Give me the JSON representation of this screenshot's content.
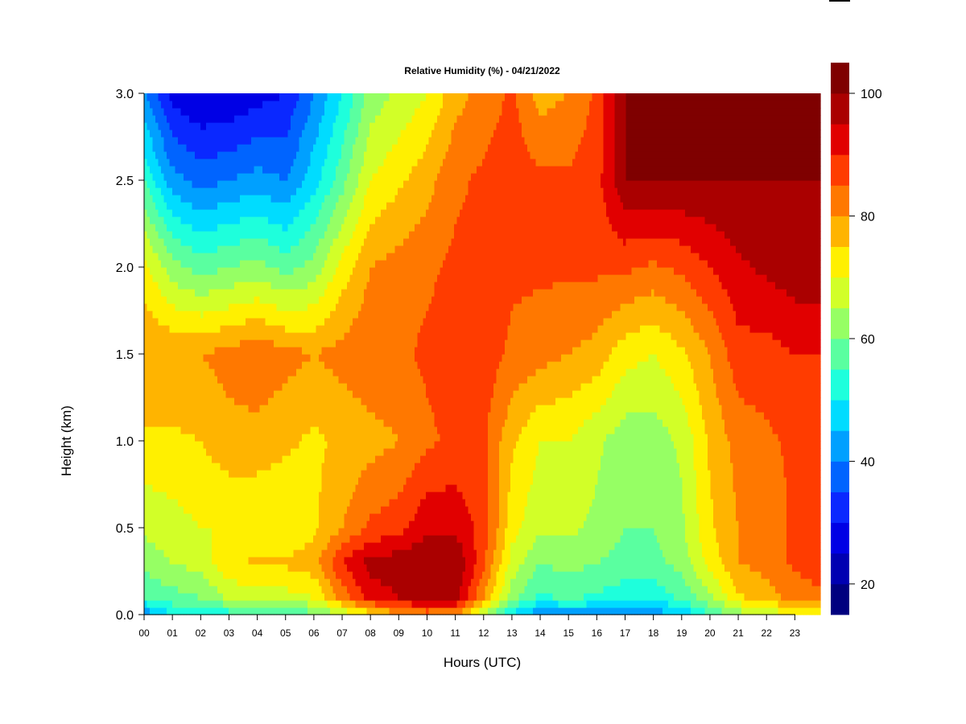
{
  "chart_data": {
    "type": "heatmap",
    "title": "Relative Humidity (%) - 04/21/2022",
    "xlabel": "Hours (UTC)",
    "ylabel": "Height (km)",
    "xlim": [
      0,
      23.9
    ],
    "ylim": [
      0.0,
      3.0
    ],
    "x_ticks": [
      "00",
      "01",
      "02",
      "03",
      "04",
      "05",
      "06",
      "07",
      "08",
      "09",
      "10",
      "11",
      "12",
      "13",
      "14",
      "15",
      "16",
      "17",
      "18",
      "19",
      "20",
      "21",
      "22",
      "23"
    ],
    "y_ticks": [
      "0.0",
      "0.5",
      "1.0",
      "1.5",
      "2.0",
      "2.5",
      "3.0"
    ],
    "colorbar": {
      "min": 15,
      "max": 100,
      "step": 5,
      "tick_values": [
        20,
        40,
        60,
        80,
        100
      ],
      "tick_labels": [
        "20",
        "40",
        "60",
        "80",
        "100"
      ],
      "colors": [
        "#00007F",
        "#0000B2",
        "#0000E5",
        "#0A28FF",
        "#0064FF",
        "#00A0FF",
        "#00DCFF",
        "#1EFFDC",
        "#5AFFA0",
        "#96FF64",
        "#D2FF28",
        "#FFF000",
        "#FFB400",
        "#FF7800",
        "#FF3C00",
        "#E10000",
        "#AA0000",
        "#7F0000"
      ]
    },
    "grid": false,
    "rh_profiles": [
      {
        "hour": 0.0,
        "heights_km": [
          0.0,
          0.1,
          0.3,
          0.5,
          1.0,
          1.5,
          2.0,
          2.5,
          3.0
        ],
        "rh": [
          40,
          55,
          62,
          66,
          74,
          80,
          72,
          55,
          40
        ]
      },
      {
        "hour": 1.0,
        "heights_km": [
          0.0,
          0.1,
          0.3,
          0.5,
          1.0,
          1.5,
          2.0,
          2.5,
          3.0
        ],
        "rh": [
          50,
          58,
          65,
          68,
          74,
          80,
          62,
          42,
          28
        ]
      },
      {
        "hour": 2.0,
        "heights_km": [
          0.0,
          0.1,
          0.3,
          0.5,
          1.0,
          1.5,
          2.0,
          2.5,
          3.0
        ],
        "rh": [
          50,
          60,
          67,
          70,
          75,
          80,
          58,
          38,
          25
        ]
      },
      {
        "hour": 3.0,
        "heights_km": [
          0.0,
          0.1,
          0.3,
          0.5,
          1.0,
          1.5,
          2.0,
          2.5,
          3.0
        ],
        "rh": [
          52,
          66,
          74,
          70,
          78,
          82,
          60,
          40,
          25
        ]
      },
      {
        "hour": 4.0,
        "heights_km": [
          0.0,
          0.1,
          0.3,
          0.5,
          1.0,
          1.5,
          2.0,
          2.5,
          3.0
        ],
        "rh": [
          55,
          68,
          76,
          70,
          78,
          84,
          62,
          42,
          28
        ]
      },
      {
        "hour": 5.0,
        "heights_km": [
          0.0,
          0.1,
          0.3,
          0.5,
          1.0,
          1.5,
          2.0,
          2.5,
          3.0
        ],
        "rh": [
          55,
          68,
          76,
          70,
          76,
          82,
          58,
          40,
          30
        ]
      },
      {
        "hour": 6.0,
        "heights_km": [
          0.0,
          0.1,
          0.3,
          0.5,
          1.0,
          1.5,
          2.0,
          2.5,
          3.0
        ],
        "rh": [
          58,
          70,
          78,
          74,
          74,
          80,
          62,
          48,
          40
        ]
      },
      {
        "hour": 7.0,
        "heights_km": [
          0.0,
          0.1,
          0.3,
          0.5,
          1.0,
          1.5,
          2.0,
          2.5,
          3.0
        ],
        "rh": [
          65,
          82,
          90,
          80,
          76,
          82,
          72,
          58,
          50
        ]
      },
      {
        "hour": 8.0,
        "heights_km": [
          0.0,
          0.1,
          0.3,
          0.5,
          1.0,
          1.5,
          2.0,
          2.5,
          3.0
        ],
        "rh": [
          72,
          92,
          97,
          86,
          78,
          84,
          80,
          70,
          62
        ]
      },
      {
        "hour": 9.0,
        "heights_km": [
          0.0,
          0.1,
          0.3,
          0.5,
          1.0,
          1.5,
          2.0,
          2.5,
          3.0
        ],
        "rh": [
          78,
          95,
          98,
          88,
          80,
          84,
          82,
          74,
          66
        ]
      },
      {
        "hour": 10.0,
        "heights_km": [
          0.0,
          0.1,
          0.3,
          0.5,
          1.0,
          1.5,
          2.0,
          2.5,
          3.0
        ],
        "rh": [
          82,
          97,
          100,
          94,
          84,
          86,
          84,
          78,
          70
        ]
      },
      {
        "hour": 11.0,
        "heights_km": [
          0.0,
          0.1,
          0.3,
          0.5,
          1.0,
          1.5,
          2.0,
          2.5,
          3.0
        ],
        "rh": [
          80,
          98,
          100,
          94,
          86,
          88,
          86,
          84,
          78
        ]
      },
      {
        "hour": 12.0,
        "heights_km": [
          0.0,
          0.1,
          0.3,
          0.5,
          1.0,
          1.5,
          2.0,
          2.5,
          3.0
        ],
        "rh": [
          65,
          80,
          86,
          88,
          86,
          88,
          86,
          86,
          82
        ]
      },
      {
        "hour": 13.0,
        "heights_km": [
          0.0,
          0.1,
          0.3,
          0.5,
          1.0,
          1.5,
          2.0,
          2.5,
          3.0
        ],
        "rh": [
          48,
          62,
          68,
          72,
          76,
          84,
          86,
          88,
          86
        ]
      },
      {
        "hour": 14.0,
        "heights_km": [
          0.0,
          0.1,
          0.3,
          0.5,
          1.0,
          1.5,
          2.0,
          2.5,
          3.0
        ],
        "rh": [
          40,
          54,
          60,
          66,
          70,
          82,
          86,
          86,
          78
        ]
      },
      {
        "hour": 15.0,
        "heights_km": [
          0.0,
          0.1,
          0.3,
          0.5,
          1.0,
          1.5,
          2.0,
          2.5,
          3.0
        ],
        "rh": [
          42,
          56,
          62,
          66,
          70,
          80,
          86,
          86,
          80
        ]
      },
      {
        "hour": 16.0,
        "heights_km": [
          0.0,
          0.1,
          0.3,
          0.5,
          1.0,
          1.5,
          2.0,
          2.5,
          3.0
        ],
        "rh": [
          42,
          54,
          60,
          64,
          66,
          78,
          86,
          88,
          86
        ]
      },
      {
        "hour": 17.0,
        "heights_km": [
          0.0,
          0.1,
          0.3,
          0.5,
          1.0,
          1.5,
          2.0,
          2.5,
          3.0
        ],
        "rh": [
          40,
          52,
          58,
          60,
          62,
          72,
          86,
          100,
          100
        ]
      },
      {
        "hour": 18.0,
        "heights_km": [
          0.0,
          0.1,
          0.3,
          0.5,
          1.0,
          1.5,
          2.0,
          2.5,
          3.0
        ],
        "rh": [
          42,
          52,
          58,
          60,
          62,
          70,
          84,
          100,
          100
        ]
      },
      {
        "hour": 19.0,
        "heights_km": [
          0.0,
          0.1,
          0.3,
          0.5,
          1.0,
          1.5,
          2.0,
          2.5,
          3.0
        ],
        "rh": [
          45,
          56,
          62,
          64,
          66,
          74,
          86,
          100,
          100
        ]
      },
      {
        "hour": 20.0,
        "heights_km": [
          0.0,
          0.1,
          0.3,
          0.5,
          1.0,
          1.5,
          2.0,
          2.5,
          3.0
        ],
        "rh": [
          55,
          64,
          72,
          74,
          76,
          80,
          90,
          100,
          100
        ]
      },
      {
        "hour": 21.0,
        "heights_km": [
          0.0,
          0.1,
          0.3,
          0.5,
          1.0,
          1.5,
          2.0,
          2.5,
          3.0
        ],
        "rh": [
          62,
          74,
          80,
          80,
          82,
          88,
          94,
          100,
          100
        ]
      },
      {
        "hour": 22.0,
        "heights_km": [
          0.0,
          0.1,
          0.3,
          0.5,
          1.0,
          1.5,
          2.0,
          2.5,
          3.0
        ],
        "rh": [
          66,
          78,
          82,
          82,
          84,
          88,
          96,
          100,
          100
        ]
      },
      {
        "hour": 23.0,
        "heights_km": [
          0.0,
          0.1,
          0.3,
          0.5,
          1.0,
          1.5,
          2.0,
          2.5,
          3.0
        ],
        "rh": [
          70,
          82,
          86,
          86,
          86,
          90,
          98,
          100,
          100
        ]
      },
      {
        "hour": 23.9,
        "heights_km": [
          0.0,
          0.1,
          0.3,
          0.5,
          1.0,
          1.5,
          2.0,
          2.5,
          3.0
        ],
        "rh": [
          72,
          84,
          88,
          88,
          88,
          90,
          98,
          100,
          100
        ]
      }
    ]
  }
}
